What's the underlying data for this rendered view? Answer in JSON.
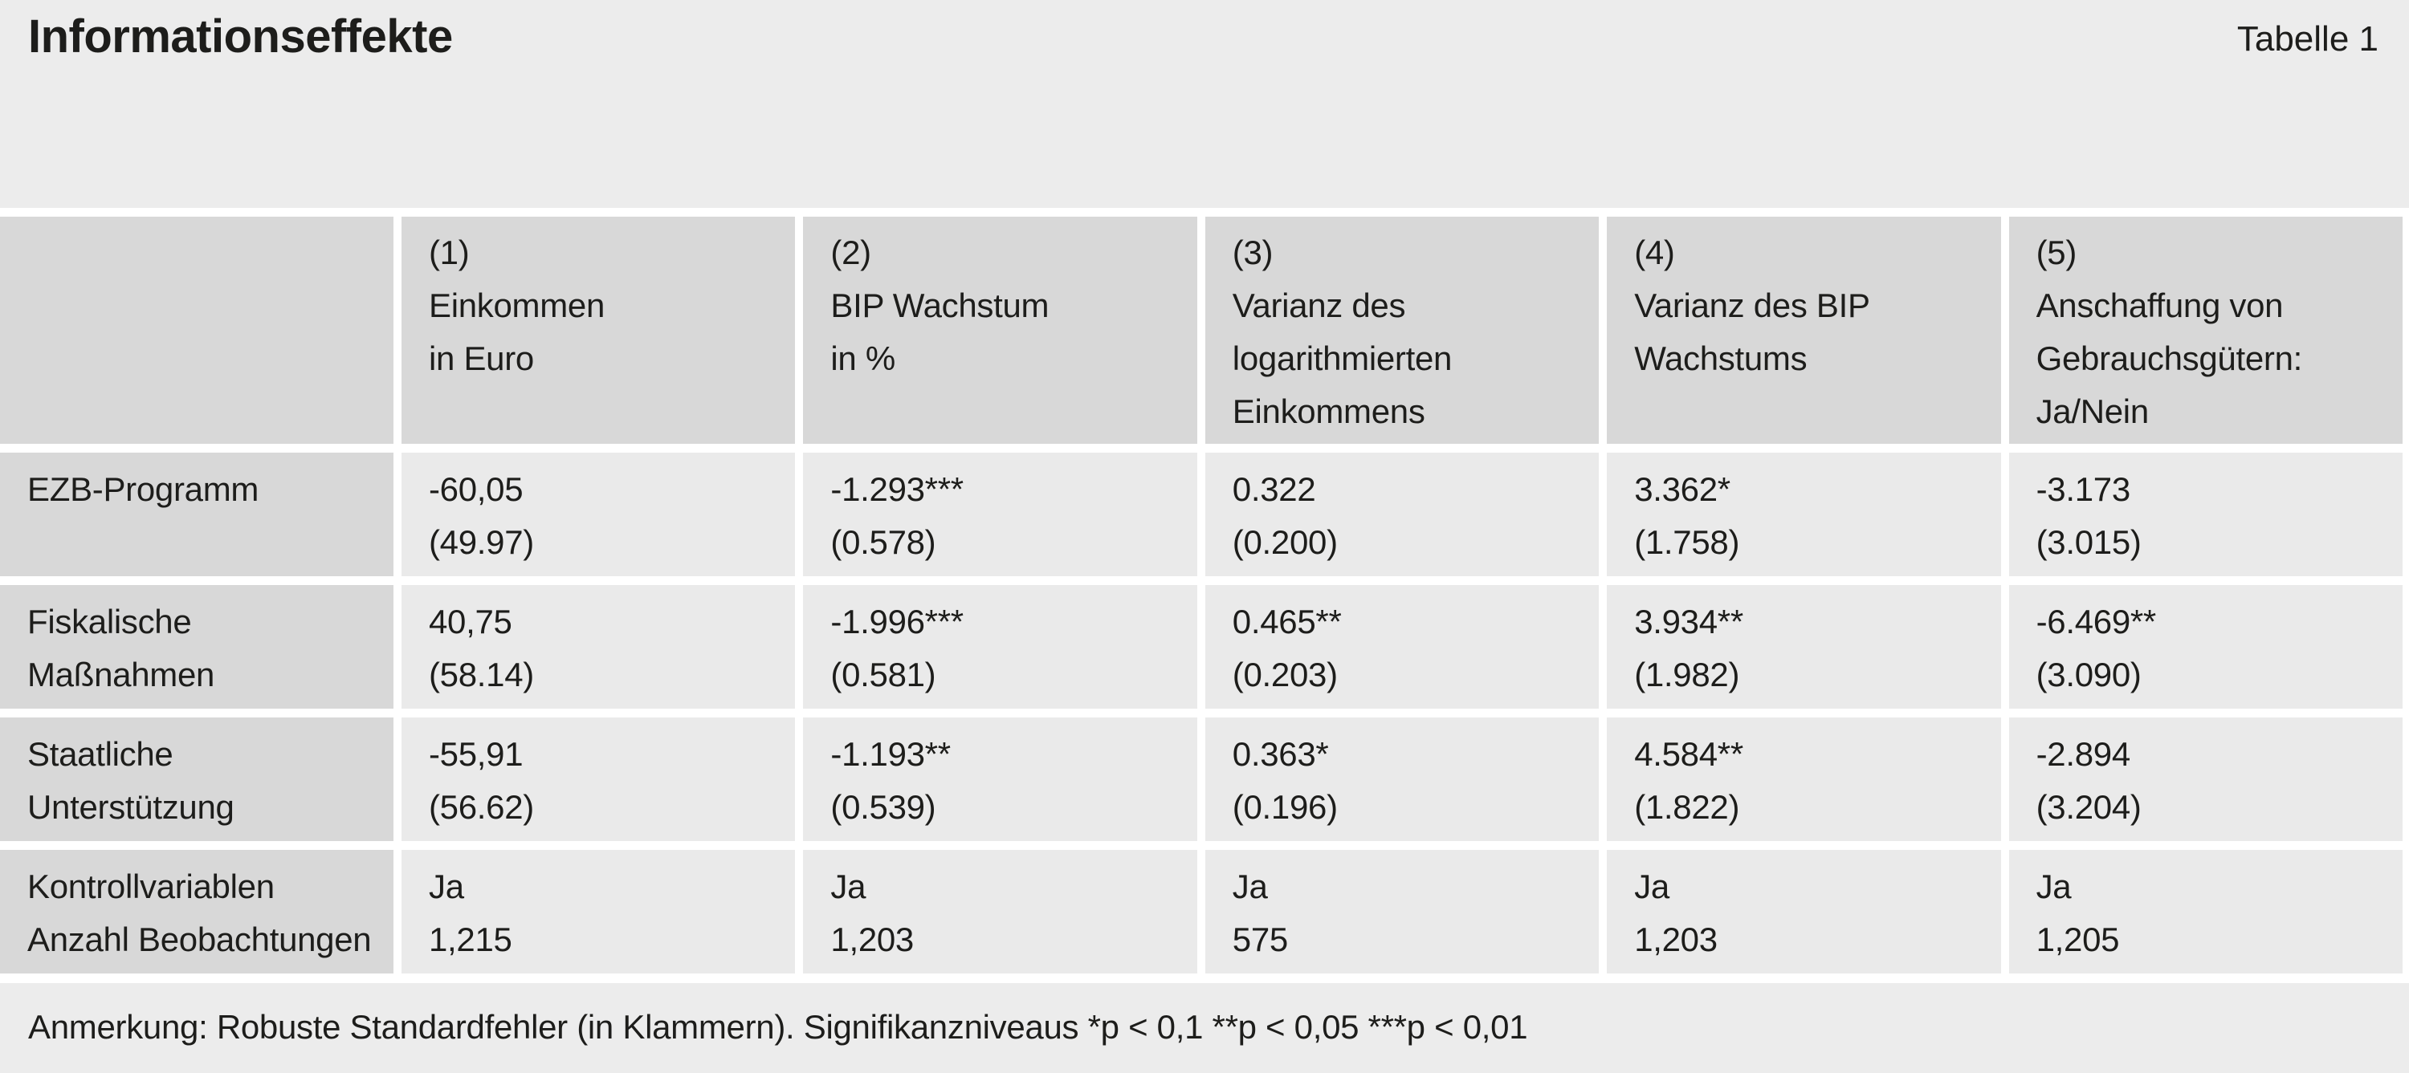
{
  "colors": {
    "page_bg": "#ececec",
    "header_cell_bg": "#d8d8d8",
    "data_cell_bg": "#eaeaea",
    "gutter": "#ffffff",
    "text": "#1d1d1b"
  },
  "chart_data": {
    "type": "table",
    "title": "Informationseffekte",
    "table_label": "Tabelle 1",
    "note": "Anmerkung: Robuste Standardfehler (in Klammern). Signifikanzniveaus *p < 0,1 **p < 0,05 ***p < 0,01",
    "col_headers": [
      {
        "num": "(1)",
        "lines": [
          "Einkommen",
          "in Euro"
        ]
      },
      {
        "num": "(2)",
        "lines": [
          "BIP Wachstum",
          "in %"
        ]
      },
      {
        "num": "(3)",
        "lines": [
          "Varianz des",
          "logarithmierten",
          "Einkommens"
        ]
      },
      {
        "num": "(4)",
        "lines": [
          "Varianz des BIP",
          "Wachstums"
        ]
      },
      {
        "num": "(5)",
        "lines": [
          "Anschaffung von",
          "Gebrauchsgütern:",
          "Ja/Nein"
        ]
      }
    ],
    "rows": [
      {
        "label_lines": [
          "EZB-Programm"
        ],
        "cells": [
          [
            "-60,05",
            "(49.97)"
          ],
          [
            "-1.293***",
            "(0.578)"
          ],
          [
            "0.322",
            "(0.200)"
          ],
          [
            "3.362*",
            "(1.758)"
          ],
          [
            "-3.173",
            "(3.015)"
          ]
        ]
      },
      {
        "label_lines": [
          "Fiskalische",
          "Maßnahmen"
        ],
        "cells": [
          [
            "40,75",
            "(58.14)"
          ],
          [
            "-1.996***",
            "(0.581)"
          ],
          [
            "0.465**",
            "(0.203)"
          ],
          [
            "3.934**",
            "(1.982)"
          ],
          [
            "-6.469**",
            "(3.090)"
          ]
        ]
      },
      {
        "label_lines": [
          "Staatliche",
          "Unterstützung"
        ],
        "cells": [
          [
            "-55,91",
            "(56.62)"
          ],
          [
            "-1.193**",
            "(0.539)"
          ],
          [
            "0.363*",
            "(0.196)"
          ],
          [
            "4.584**",
            "(1.822)"
          ],
          [
            "-2.894",
            "(3.204)"
          ]
        ]
      },
      {
        "label_lines": [
          "Kontrollvariablen",
          "Anzahl Beobachtungen"
        ],
        "cells": [
          [
            "Ja",
            "1,215"
          ],
          [
            "Ja",
            "1,203"
          ],
          [
            "Ja",
            "575"
          ],
          [
            "Ja",
            "1,203"
          ],
          [
            "Ja",
            "1,205"
          ]
        ]
      }
    ]
  }
}
